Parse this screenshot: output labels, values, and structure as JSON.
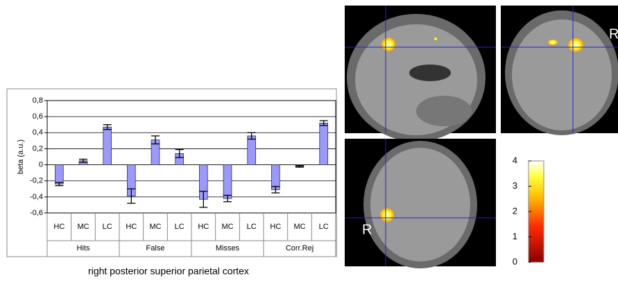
{
  "chart_data": {
    "type": "bar",
    "title": "right posterior superior parietal cortex",
    "y_label": "beta (a.u.)",
    "categories": [
      "HC",
      "MC",
      "LC",
      "HC",
      "MC",
      "LC",
      "HC",
      "MC",
      "LC",
      "HC",
      "MC",
      "LC"
    ],
    "groups": [
      "Hits",
      "False",
      "Misses",
      "Corr.Rej"
    ],
    "values": [
      -0.24,
      0.05,
      0.47,
      -0.39,
      0.31,
      0.14,
      -0.43,
      -0.42,
      0.36,
      -0.31,
      -0.02,
      0.52
    ],
    "errors": [
      0.02,
      0.02,
      0.03,
      0.09,
      0.05,
      0.05,
      0.1,
      0.04,
      0.04,
      0.04,
      0.01,
      0.03
    ],
    "color": "#9999ff",
    "ylim": [
      -0.6,
      0.8
    ],
    "yticks": [
      {
        "value": -0.6,
        "label": "-0,6"
      },
      {
        "value": -0.4,
        "label": "-0,4"
      },
      {
        "value": -0.2,
        "label": "-0,2"
      },
      0,
      {
        "value": 0.2,
        "label": "0,2"
      },
      {
        "value": 0.4,
        "label": "0,4"
      },
      {
        "value": 0.6,
        "label": "0,6"
      },
      {
        "value": 0.8,
        "label": "0,8"
      }
    ],
    "grid": true
  },
  "colorbar": {
    "lim": [
      0,
      4
    ],
    "ticks": [
      0,
      1,
      2,
      3,
      4
    ]
  },
  "image_labels": [
    "R",
    "R"
  ]
}
